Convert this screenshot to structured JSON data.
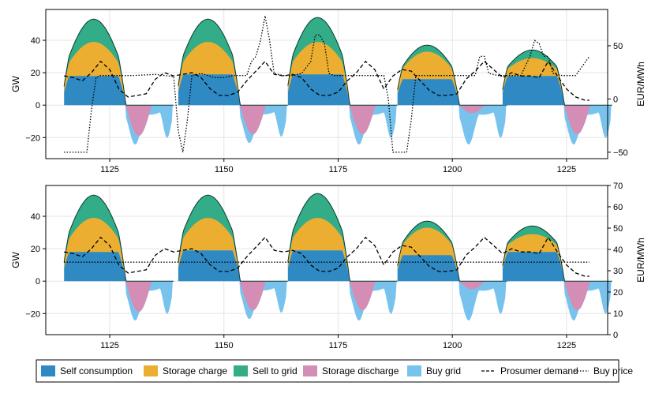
{
  "colors": {
    "self_consumption": "#2f8ac4",
    "storage_charge": "#ecae31",
    "sell_to_grid": "#33ad88",
    "storage_discharge": "#d48db4",
    "buy_grid": "#78c3ee",
    "line": "#000000"
  },
  "legend": [
    {
      "key": "self_consumption",
      "label": "Self consumption",
      "kind": "patch"
    },
    {
      "key": "storage_charge",
      "label": "Storage charge",
      "kind": "patch"
    },
    {
      "key": "sell_to_grid",
      "label": "Sell to grid",
      "kind": "patch"
    },
    {
      "key": "storage_discharge",
      "label": "Storage discharge",
      "kind": "patch"
    },
    {
      "key": "buy_grid",
      "label": "Buy grid",
      "kind": "patch"
    },
    {
      "key": "prosumer_demand",
      "label": "Prosumer demand",
      "kind": "dashed"
    },
    {
      "key": "buy_price",
      "label": "Buy price",
      "kind": "dotted"
    }
  ],
  "chart_data": [
    {
      "type": "area",
      "panel": "top",
      "xlabel": "",
      "ylabel": "GW",
      "y2label": "EUR/MWh",
      "xlim": [
        1111,
        1234
      ],
      "ylim": [
        -33,
        59
      ],
      "y2lim": [
        -56,
        84
      ],
      "xticks": [
        1125,
        1150,
        1175,
        1200,
        1225
      ],
      "yticks": [
        -20,
        0,
        20,
        40
      ],
      "y2ticks": [
        -50,
        0,
        50
      ],
      "grid": true,
      "series": [
        {
          "name": "Prosumer demand",
          "style": "dashed",
          "axis": "left",
          "x": [
            1115,
            1117,
            1119,
            1121,
            1123,
            1125,
            1127,
            1129,
            1131,
            1133,
            1135,
            1137,
            1139,
            1141,
            1143,
            1145,
            1147,
            1149,
            1151,
            1153,
            1155,
            1157,
            1159,
            1161,
            1163,
            1165,
            1167,
            1169,
            1171,
            1173,
            1175,
            1177,
            1179,
            1181,
            1183,
            1185,
            1187,
            1189,
            1191,
            1193,
            1195,
            1197,
            1199,
            1201,
            1203,
            1205,
            1207,
            1209,
            1211,
            1213,
            1215,
            1217,
            1219,
            1221,
            1223,
            1225,
            1227,
            1229,
            1230
          ],
          "y": [
            18,
            17,
            15,
            20,
            27,
            22,
            10,
            5,
            6,
            7,
            16,
            20,
            18,
            19,
            20,
            17,
            10,
            6,
            6,
            8,
            15,
            21,
            27,
            19,
            18,
            19,
            17,
            10,
            6,
            6,
            8,
            15,
            20,
            27,
            22,
            10,
            18,
            22,
            21,
            15,
            9,
            6,
            6,
            7,
            16,
            21,
            27,
            22,
            17,
            20,
            18,
            18,
            17,
            27,
            18,
            10,
            5,
            3,
            3
          ]
        },
        {
          "name": "Buy price",
          "style": "dotted",
          "axis": "right",
          "x": [
            1115,
            1118,
            1120,
            1121,
            1122,
            1123,
            1125,
            1130,
            1135,
            1137,
            1139,
            1140,
            1141,
            1142,
            1143,
            1145,
            1148,
            1150,
            1152,
            1154,
            1155,
            1156,
            1157,
            1158,
            1159,
            1160,
            1161,
            1163,
            1165,
            1167,
            1169,
            1170,
            1171,
            1172,
            1173,
            1174,
            1175,
            1180,
            1185,
            1186,
            1187,
            1188,
            1189,
            1190,
            1191,
            1192,
            1193,
            1195,
            1200,
            1205,
            1206,
            1207,
            1208,
            1210,
            1212,
            1215,
            1217,
            1218,
            1219,
            1220,
            1221,
            1222,
            1224,
            1227,
            1230
          ],
          "y": [
            -50,
            -50,
            -50,
            -10,
            20,
            22,
            22,
            22,
            23,
            22,
            21,
            -30,
            -50,
            -20,
            22,
            24,
            20,
            20,
            22,
            22,
            22,
            35,
            40,
            55,
            78,
            55,
            24,
            22,
            22,
            24,
            35,
            60,
            60,
            52,
            24,
            22,
            22,
            22,
            22,
            0,
            -50,
            -50,
            -50,
            -50,
            -20,
            22,
            22,
            22,
            22,
            22,
            40,
            40,
            24,
            22,
            22,
            22,
            40,
            55,
            52,
            40,
            40,
            24,
            22,
            22,
            40
          ]
        }
      ],
      "profile": {
        "days": [
          1115,
          1140,
          1164,
          1188,
          1211
        ],
        "sell_to_grid_peak": [
          53,
          53,
          54,
          37,
          34
        ],
        "storage_charge_peak": [
          39,
          39,
          39,
          33,
          29
        ],
        "self_consumption_peak": [
          18,
          19,
          19,
          16,
          18
        ],
        "buy_grid_min": [
          -27,
          -26,
          -27,
          -27,
          -27
        ],
        "storage_discharge_min": [
          -19,
          -18,
          -18,
          -5,
          -18
        ]
      }
    },
    {
      "type": "area",
      "panel": "bottom",
      "xlabel": "",
      "ylabel": "GW",
      "y2label": "EUR/MWh",
      "xlim": [
        1111,
        1234
      ],
      "ylim": [
        -33,
        59
      ],
      "y2lim": [
        0,
        70
      ],
      "xticks": [
        1125,
        1150,
        1175,
        1200,
        1225
      ],
      "yticks": [
        -20,
        0,
        20,
        40
      ],
      "y2ticks": [
        0,
        10,
        20,
        30,
        40,
        50,
        60,
        70
      ],
      "grid": true,
      "series": [
        {
          "name": "Prosumer demand",
          "style": "dashed",
          "axis": "left",
          "x": [
            1115,
            1117,
            1119,
            1121,
            1123,
            1125,
            1127,
            1129,
            1131,
            1133,
            1135,
            1137,
            1139,
            1141,
            1143,
            1145,
            1147,
            1149,
            1151,
            1153,
            1155,
            1157,
            1159,
            1161,
            1163,
            1165,
            1167,
            1169,
            1171,
            1173,
            1175,
            1177,
            1179,
            1181,
            1183,
            1185,
            1187,
            1189,
            1191,
            1193,
            1195,
            1197,
            1199,
            1201,
            1203,
            1205,
            1207,
            1209,
            1211,
            1213,
            1215,
            1217,
            1219,
            1221,
            1223,
            1225,
            1227,
            1229,
            1230
          ],
          "y": [
            18,
            17,
            15,
            20,
            27,
            22,
            10,
            5,
            6,
            7,
            16,
            20,
            18,
            19,
            20,
            17,
            10,
            6,
            6,
            8,
            15,
            21,
            27,
            19,
            18,
            19,
            17,
            10,
            6,
            6,
            8,
            15,
            20,
            27,
            22,
            10,
            18,
            22,
            21,
            15,
            9,
            6,
            6,
            7,
            16,
            21,
            27,
            22,
            17,
            20,
            18,
            18,
            17,
            27,
            18,
            10,
            5,
            3,
            3
          ]
        },
        {
          "name": "Buy price",
          "style": "dotted",
          "axis": "right",
          "x": [
            1115,
            1230
          ],
          "y": [
            34,
            34
          ]
        }
      ],
      "profile": {
        "days": [
          1115,
          1140,
          1164,
          1188,
          1211
        ],
        "sell_to_grid_peak": [
          53,
          53,
          54,
          37,
          34
        ],
        "storage_charge_peak": [
          39,
          39,
          39,
          33,
          29
        ],
        "self_consumption_peak": [
          18,
          19,
          19,
          16,
          18
        ],
        "buy_grid_min": [
          -27,
          -26,
          -27,
          -27,
          -27
        ],
        "storage_discharge_min": [
          -19,
          -18,
          -18,
          -5,
          -18
        ]
      }
    }
  ]
}
